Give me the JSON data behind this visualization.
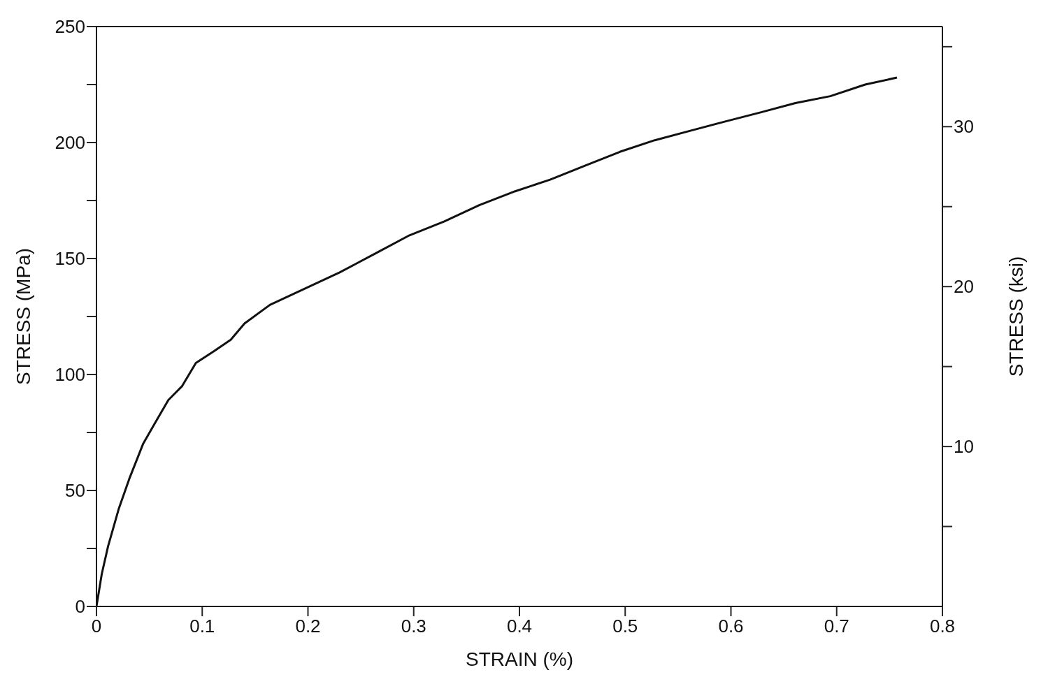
{
  "chart_data": {
    "type": "line",
    "xlabel": "STRAIN (%)",
    "ylabel": "STRESS (MPa)",
    "y2label": "STRESS (ksi)",
    "xlim": [
      0,
      0.8
    ],
    "xticks": [
      0,
      0.1,
      0.2,
      0.3,
      0.4,
      0.5,
      0.6,
      0.7,
      0.8
    ],
    "ylim": [
      0,
      250
    ],
    "yticks": [
      0,
      {
        "value": 25,
        "label": null
      },
      50,
      {
        "value": 75,
        "label": null
      },
      100,
      {
        "value": 125,
        "label": null
      },
      150,
      {
        "value": 175,
        "label": null
      },
      200,
      {
        "value": 225,
        "label": null
      },
      250
    ],
    "y2lim": [
      0,
      36.26
    ],
    "y2ticks": [
      {
        "value": 5,
        "label": null
      },
      10,
      {
        "value": 15,
        "label": null
      },
      20,
      {
        "value": 25,
        "label": null
      },
      30,
      {
        "value": 35,
        "label": null
      }
    ],
    "grid": false,
    "marker": "none",
    "line_style": "solid",
    "series": [
      {
        "color": "#111111",
        "x": [
          0,
          0.005,
          0.011,
          0.021,
          0.031,
          0.044,
          0.054,
          0.068,
          0.081,
          0.094,
          0.111,
          0.127,
          0.14,
          0.164,
          0.197,
          0.23,
          0.263,
          0.296,
          0.329,
          0.362,
          0.396,
          0.429,
          0.462,
          0.495,
          0.528,
          0.561,
          0.594,
          0.628,
          0.661,
          0.694,
          0.727,
          0.757
        ],
        "values": [
          0,
          14,
          26,
          42,
          55,
          70,
          78,
          89,
          95,
          105,
          110,
          115,
          122,
          130,
          137,
          144,
          152,
          160,
          166,
          173,
          179,
          184,
          190,
          196,
          201,
          205,
          209,
          213,
          217,
          220,
          225,
          228
        ]
      }
    ]
  }
}
